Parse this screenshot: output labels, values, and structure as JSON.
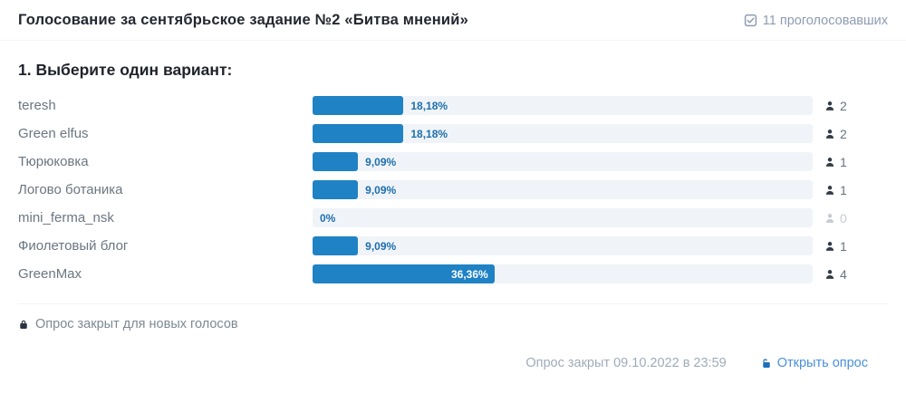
{
  "header": {
    "title": "Голосование за сентябрьское задание №2 «Битва мнений»",
    "voters_label": "11 проголосовавших"
  },
  "question": {
    "title": "1. Выберите один вариант:"
  },
  "options": [
    {
      "label": "teresh",
      "percent": 18.18,
      "percent_label": "18,18%",
      "votes": 2,
      "label_inside": false
    },
    {
      "label": "Green elfus",
      "percent": 18.18,
      "percent_label": "18,18%",
      "votes": 2,
      "label_inside": false
    },
    {
      "label": "Тюрюковка",
      "percent": 9.09,
      "percent_label": "9,09%",
      "votes": 1,
      "label_inside": false
    },
    {
      "label": "Логово ботаника",
      "percent": 9.09,
      "percent_label": "9,09%",
      "votes": 1,
      "label_inside": false
    },
    {
      "label": "mini_ferma_nsk",
      "percent": 0,
      "percent_label": "0%",
      "votes": 0,
      "label_inside": false
    },
    {
      "label": "Фиолетовый блог",
      "percent": 9.09,
      "percent_label": "9,09%",
      "votes": 1,
      "label_inside": false
    },
    {
      "label": "GreenMax",
      "percent": 36.36,
      "percent_label": "36,36%",
      "votes": 4,
      "label_inside": true
    }
  ],
  "footer": {
    "closed_note": "Опрос закрыт для новых голосов",
    "closed_date": "Опрос закрыт 09.10.2022 в 23:59",
    "open_link_label": "Открыть опрос"
  },
  "colors": {
    "bar": "#1f82c4",
    "track": "#f0f4f8",
    "percent_text": "#1d6fae",
    "link": "#4a90d9",
    "muted": "#c5ccd4"
  },
  "chart_data": {
    "type": "bar",
    "title": "Голосование за сентябрьское задание №2 «Битва мнений»",
    "categories": [
      "teresh",
      "Green elfus",
      "Тюрюковка",
      "Логово ботаника",
      "mini_ferma_nsk",
      "Фиолетовый блог",
      "GreenMax"
    ],
    "values_percent": [
      18.18,
      18.18,
      9.09,
      9.09,
      0,
      9.09,
      36.36
    ],
    "values_votes": [
      2,
      2,
      1,
      1,
      0,
      1,
      4
    ],
    "total_voters": 11,
    "xlim": [
      0,
      100
    ]
  }
}
